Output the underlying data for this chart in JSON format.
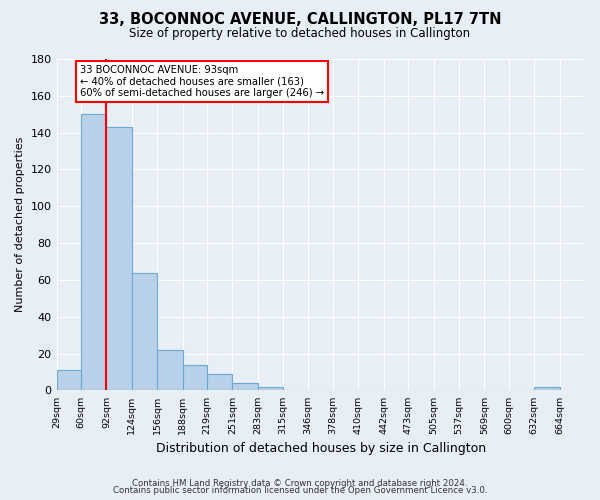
{
  "title": "33, BOCONNOC AVENUE, CALLINGTON, PL17 7TN",
  "subtitle": "Size of property relative to detached houses in Callington",
  "xlabel": "Distribution of detached houses by size in Callington",
  "ylabel": "Number of detached properties",
  "bar_edges": [
    29,
    60,
    92,
    124,
    156,
    188,
    219,
    251,
    283,
    315,
    346,
    378,
    410,
    442,
    473,
    505,
    537,
    569,
    600,
    632,
    664
  ],
  "bar_heights": [
    11,
    150,
    143,
    64,
    22,
    14,
    9,
    4,
    2,
    0,
    0,
    0,
    0,
    0,
    0,
    0,
    0,
    0,
    0,
    2
  ],
  "tick_labels": [
    "29sqm",
    "60sqm",
    "92sqm",
    "124sqm",
    "156sqm",
    "188sqm",
    "219sqm",
    "251sqm",
    "283sqm",
    "315sqm",
    "346sqm",
    "378sqm",
    "410sqm",
    "442sqm",
    "473sqm",
    "505sqm",
    "537sqm",
    "569sqm",
    "600sqm",
    "632sqm",
    "664sqm"
  ],
  "bar_color": "#b8d0e8",
  "bar_edge_color": "#6aaad4",
  "red_line_x": 92,
  "annotation_line1": "33 BOCONNOC AVENUE: 93sqm",
  "annotation_line2": "← 40% of detached houses are smaller (163)",
  "annotation_line3": "60% of semi-detached houses are larger (246) →",
  "ylim": [
    0,
    180
  ],
  "yticks": [
    0,
    20,
    40,
    60,
    80,
    100,
    120,
    140,
    160,
    180
  ],
  "xlim_left": 29,
  "xlim_right": 696,
  "bg_color": "#e8eef5",
  "grid_color": "#ffffff",
  "footer_line1": "Contains HM Land Registry data © Crown copyright and database right 2024.",
  "footer_line2": "Contains public sector information licensed under the Open Government Licence v3.0."
}
